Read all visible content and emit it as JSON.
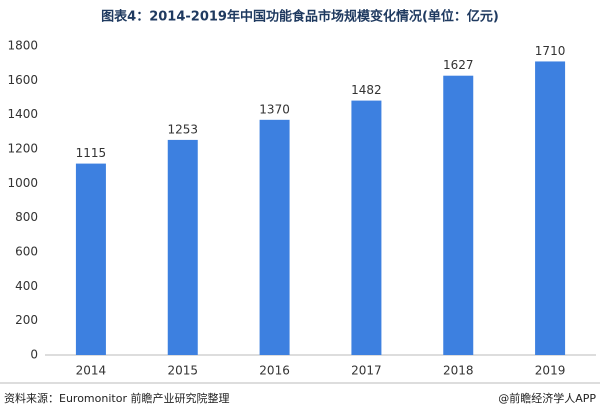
{
  "chart_data": {
    "type": "bar",
    "title": "图表4：2014-2019年中国功能食品市场规模变化情况(单位：亿元)",
    "categories": [
      "2014",
      "2015",
      "2016",
      "2017",
      "2018",
      "2019"
    ],
    "values": [
      1115,
      1253,
      1370,
      1482,
      1627,
      1710
    ],
    "color": "#3d80e0",
    "ylim": [
      0,
      1800
    ],
    "yticks": [
      0,
      200,
      400,
      600,
      800,
      1000,
      1200,
      1400,
      1600,
      1800
    ],
    "grid": false,
    "source": "资料来源：Euromonitor 前瞻产业研究院整理",
    "credit": "@前瞻经济学人APP"
  }
}
